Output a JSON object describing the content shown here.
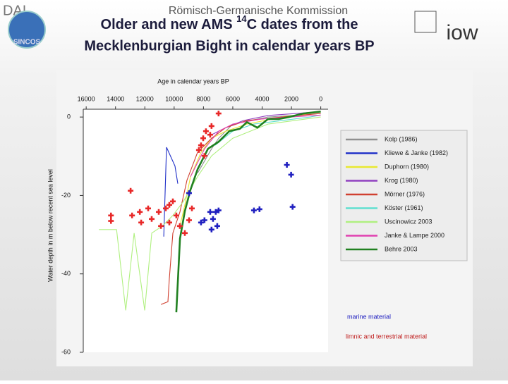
{
  "header": {
    "org": "DAI",
    "commission": "Römisch-Germanische Kommission",
    "title": {
      "line1_before": "Older and new AMS ",
      "line1_sup": "14",
      "line1_after": "C dates from the",
      "line2": "Mecklenburgian Bight  in calendar years BP"
    },
    "left_logo": "SINCOS",
    "right_logo": "iow"
  },
  "chart_data": {
    "type": "line",
    "x_label": "Age in calendar years BP",
    "y_label": "Water depth in m below recent sea level",
    "xlim": [
      16200,
      -500
    ],
    "xticks": [
      16000,
      14000,
      12000,
      10000,
      8000,
      6000,
      4000,
      2000,
      0
    ],
    "ylim": [
      -60,
      2
    ],
    "yticks": [
      0,
      -20,
      -40,
      -60
    ],
    "legend": "right",
    "series": [
      {
        "name": "Kolp (1986)",
        "color": "#909090",
        "x": [
          8405,
          7445,
          6965,
          6004,
          3602,
          0
        ],
        "y": [
          -14.3,
          -8.1,
          -5.4,
          -1.8,
          0,
          0.9
        ]
      },
      {
        "name": "Kliewe & Janke (1982)",
        "color": "#2030c8",
        "x": [
          10711,
          10519,
          9942,
          9750
        ],
        "y": [
          -30.5,
          -7.7,
          -12.5,
          -17.0
        ]
      },
      {
        "name": "Duphorn (1980)",
        "color": "#e8e830",
        "x": [
          9606,
          9270,
          8886,
          8165,
          7445,
          6484,
          5044,
          2642,
          0
        ],
        "y": [
          -27.8,
          -22.4,
          -15.2,
          -9.0,
          -5.4,
          -3.6,
          -1.8,
          0,
          1.3
        ]
      },
      {
        "name": "Krog (1980)",
        "color": "#9040c0",
        "x": [
          7445,
          6484,
          5284,
          3602,
          1681,
          0
        ],
        "y": [
          -4.5,
          -2.7,
          -0.9,
          0.4,
          0.9,
          1.4
        ]
      },
      {
        "name": "Mörner (1976)",
        "color": "#d04030",
        "x": [
          10903,
          10423,
          10327,
          10086,
          9606,
          9126,
          8405,
          7445,
          6484,
          5044,
          2642,
          0
        ],
        "y": [
          -47.8,
          -47.1,
          -41.2,
          -29.6,
          -24.2,
          -16.1,
          -9.0,
          -5.4,
          -2.7,
          -0.9,
          0,
          0.9
        ]
      },
      {
        "name": "Köster (1961)",
        "color": "#60e0d0",
        "x": [
          7205,
          6004,
          4563,
          2642,
          721,
          0
        ],
        "y": [
          -7.2,
          -3.6,
          -1.8,
          -0.9,
          0,
          0.5
        ]
      },
      {
        "name": "Uscinowicz 2003",
        "color": "#b0f080",
        "x": [
          15130,
          13929,
          13305,
          12728,
          12008,
          11527,
          10807,
          10086,
          9366,
          8405,
          7445,
          6004,
          3602,
          0
        ],
        "y": [
          -28.7,
          -28.7,
          -49.3,
          -29.6,
          -49.3,
          -29.6,
          -27.8,
          -25.1,
          -21.5,
          -15.2,
          -9.9,
          -5.4,
          -1.8,
          0
        ]
      },
      {
        "name": "Janke & Lampe 2000",
        "color": "#e040b0",
        "x": [
          8886,
          7925,
          6965,
          6004,
          4083,
          0
        ],
        "y": [
          -15.2,
          -8.1,
          -3.6,
          -1.8,
          -0.5,
          0.5
        ]
      },
      {
        "name": "Behre 2003",
        "color": "#208020",
        "x": [
          9850,
          9600,
          9270,
          8890,
          8400,
          7690,
          6970,
          6240,
          5520,
          5040,
          4320,
          3600,
          2880,
          2160,
          1200,
          0
        ],
        "y": [
          -49.8,
          -31,
          -24,
          -18.6,
          -13.3,
          -8.1,
          -6.3,
          -3.6,
          -3,
          -1.3,
          -2.7,
          -0.5,
          -0.5,
          0,
          0.9,
          1.4
        ]
      }
    ],
    "point_sets": [
      {
        "color": "#e82828",
        "x": [
          14310,
          14310,
          12970,
          12870,
          12340,
          12250,
          11770,
          11530,
          11050,
          10900,
          10570,
          10330,
          10090,
          10330,
          9850,
          9610,
          9270,
          8980,
          8790,
          8170,
          8020,
          7830,
          7540,
          7450,
          8310,
          7930,
          6970
        ],
        "y": [
          -25.1,
          -26.5,
          -18.8,
          -25.1,
          -24.2,
          -26.9,
          -23.3,
          -26.0,
          -24.2,
          -27.8,
          -23.3,
          -22.4,
          -21.5,
          -26.9,
          -25.1,
          -27.8,
          -29.6,
          -26.3,
          -23.3,
          -7.2,
          -5.4,
          -3.6,
          -4.5,
          -2.3,
          -8.4,
          -9.9,
          0.9
        ]
      },
      {
        "color": "#2020c0",
        "x": [
          8980,
          8170,
          7930,
          7540,
          7350,
          7160,
          6970,
          7450,
          7060,
          4560,
          4180,
          2310,
          2020,
          1920
        ],
        "y": [
          -19.4,
          -26.9,
          -26.3,
          -24.2,
          -26.0,
          -24.2,
          -23.8,
          -28.7,
          -27.8,
          -23.8,
          -23.5,
          -12.2,
          -14.7,
          -22.9
        ]
      }
    ],
    "annotations": [
      "marine material",
      "limnic and terrestrial material"
    ]
  }
}
